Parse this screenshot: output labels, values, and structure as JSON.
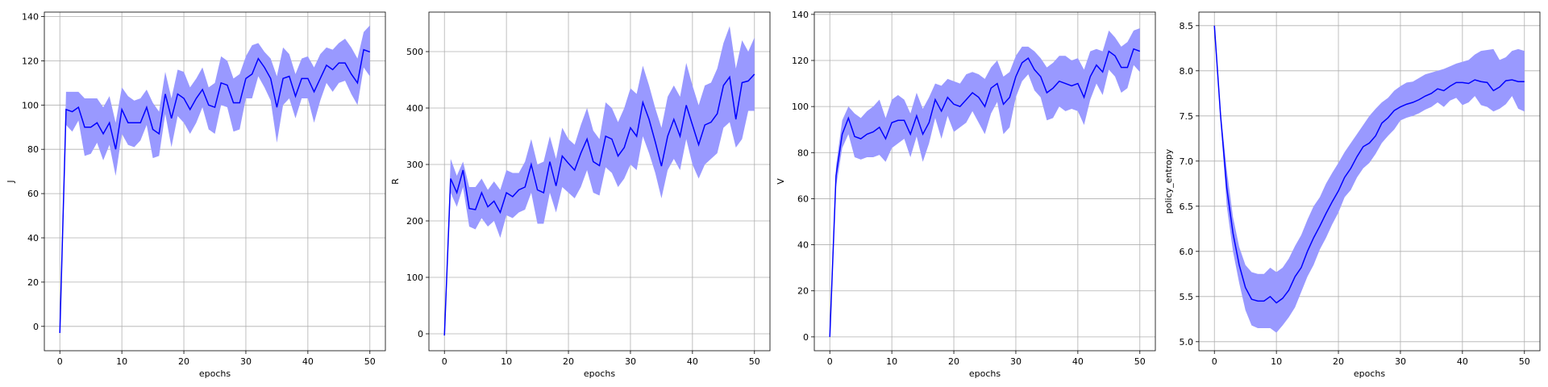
{
  "chart_data": [
    {
      "type": "line",
      "xlabel": "epochs",
      "ylabel": "J",
      "xlim": [
        -2.5,
        52.5
      ],
      "ylim": [
        -11,
        142
      ],
      "xticks": [
        0,
        10,
        20,
        30,
        40,
        50
      ],
      "yticks": [
        0,
        20,
        40,
        60,
        80,
        100,
        120,
        140
      ],
      "grid": true,
      "series": [
        {
          "x": [
            0,
            1,
            2,
            3,
            4,
            5,
            6,
            7,
            8,
            9,
            10,
            11,
            12,
            13,
            14,
            15,
            16,
            17,
            18,
            19,
            20,
            21,
            22,
            23,
            24,
            25,
            26,
            27,
            28,
            29,
            30,
            31,
            32,
            33,
            34,
            35,
            36,
            37,
            38,
            39,
            40,
            41,
            42,
            43,
            44,
            45,
            46,
            47,
            48,
            49,
            50
          ],
          "values": [
            -3,
            98,
            97,
            99,
            90,
            90,
            92,
            87,
            92,
            80,
            98,
            92,
            92,
            92,
            99,
            89,
            87,
            105,
            94,
            105,
            103,
            98,
            103,
            107,
            100,
            99,
            110,
            109,
            101,
            101,
            112,
            114,
            121,
            117,
            112,
            99,
            112,
            113,
            104,
            112,
            112,
            106,
            112,
            118,
            116,
            119,
            119,
            114,
            110,
            125,
            124
          ],
          "lower": [
            -3,
            91,
            88,
            93,
            77,
            78,
            83,
            75,
            82,
            68,
            87,
            82,
            81,
            84,
            91,
            76,
            77,
            96,
            81,
            95,
            92,
            87,
            92,
            99,
            89,
            87,
            100,
            99,
            88,
            89,
            103,
            103,
            113,
            108,
            102,
            83,
            100,
            103,
            94,
            103,
            103,
            92,
            102,
            110,
            106,
            110,
            111,
            105,
            100,
            117,
            113
          ],
          "upper": [
            -3,
            106,
            106,
            106,
            103,
            103,
            103,
            99,
            104,
            92,
            108,
            104,
            102,
            103,
            107,
            101,
            97,
            115,
            103,
            116,
            115,
            108,
            112,
            117,
            108,
            110,
            122,
            120,
            112,
            114,
            122,
            127,
            128,
            124,
            121,
            113,
            126,
            123,
            114,
            121,
            122,
            117,
            123,
            126,
            125,
            128,
            130,
            126,
            121,
            133,
            136
          ]
        }
      ]
    },
    {
      "type": "line",
      "xlabel": "epochs",
      "ylabel": "R",
      "xlim": [
        -2.5,
        52.5
      ],
      "ylim": [
        -30,
        570
      ],
      "xticks": [
        0,
        10,
        20,
        30,
        40,
        50
      ],
      "yticks": [
        0,
        100,
        200,
        300,
        400,
        500
      ],
      "grid": true,
      "series": [
        {
          "x": [
            0,
            1,
            2,
            3,
            4,
            5,
            6,
            7,
            8,
            9,
            10,
            11,
            12,
            13,
            14,
            15,
            16,
            17,
            18,
            19,
            20,
            21,
            22,
            23,
            24,
            25,
            26,
            27,
            28,
            29,
            30,
            31,
            32,
            33,
            34,
            35,
            36,
            37,
            38,
            39,
            40,
            41,
            42,
            43,
            44,
            45,
            46,
            47,
            48,
            49,
            50
          ],
          "values": [
            -3,
            275,
            250,
            290,
            222,
            220,
            250,
            225,
            235,
            215,
            250,
            243,
            255,
            260,
            300,
            255,
            250,
            305,
            262,
            315,
            302,
            290,
            320,
            345,
            305,
            298,
            350,
            345,
            315,
            330,
            365,
            350,
            410,
            380,
            340,
            297,
            350,
            380,
            350,
            405,
            370,
            335,
            370,
            375,
            390,
            440,
            455,
            380,
            445,
            448,
            460
          ],
          "lower": [
            -3,
            250,
            225,
            260,
            190,
            185,
            205,
            190,
            200,
            170,
            210,
            205,
            215,
            220,
            250,
            195,
            195,
            250,
            215,
            260,
            250,
            240,
            260,
            290,
            250,
            245,
            295,
            285,
            260,
            275,
            300,
            290,
            350,
            320,
            285,
            240,
            290,
            310,
            290,
            345,
            300,
            275,
            300,
            310,
            320,
            365,
            375,
            330,
            345,
            395,
            395
          ],
          "upper": [
            -3,
            310,
            280,
            305,
            260,
            260,
            275,
            255,
            270,
            255,
            290,
            285,
            285,
            305,
            345,
            300,
            305,
            350,
            310,
            365,
            345,
            335,
            370,
            400,
            360,
            345,
            410,
            400,
            375,
            400,
            435,
            425,
            475,
            440,
            400,
            365,
            420,
            440,
            420,
            480,
            440,
            405,
            440,
            445,
            470,
            515,
            545,
            470,
            520,
            500,
            525
          ]
        }
      ]
    },
    {
      "type": "line",
      "xlabel": "epochs",
      "ylabel": "V",
      "xlim": [
        -2.5,
        52.5
      ],
      "ylim": [
        -6,
        141
      ],
      "xticks": [
        0,
        10,
        20,
        30,
        40,
        50
      ],
      "yticks": [
        0,
        20,
        40,
        60,
        80,
        100,
        120,
        140
      ],
      "grid": true,
      "series": [
        {
          "x": [
            0,
            1,
            2,
            3,
            4,
            5,
            6,
            7,
            8,
            9,
            10,
            11,
            12,
            13,
            14,
            15,
            16,
            17,
            18,
            19,
            20,
            21,
            22,
            23,
            24,
            25,
            26,
            27,
            28,
            29,
            30,
            31,
            32,
            33,
            34,
            35,
            36,
            37,
            38,
            39,
            40,
            41,
            42,
            43,
            44,
            45,
            46,
            47,
            48,
            49,
            50
          ],
          "values": [
            0,
            70,
            88,
            95,
            87,
            86,
            88,
            89,
            91,
            86,
            93,
            94,
            94,
            88,
            96,
            88,
            93,
            103,
            98,
            104,
            101,
            100,
            103,
            106,
            104,
            100,
            108,
            110,
            101,
            104,
            113,
            119,
            121,
            116,
            113,
            106,
            108,
            111,
            110,
            109,
            110,
            104,
            113,
            118,
            115,
            124,
            122,
            117,
            117,
            125,
            124
          ],
          "lower": [
            0,
            65,
            82,
            88,
            78,
            77,
            78,
            78,
            79,
            76,
            82,
            84,
            86,
            78,
            87,
            76,
            84,
            95,
            86,
            96,
            89,
            91,
            93,
            98,
            93,
            88,
            97,
            102,
            88,
            91,
            104,
            111,
            114,
            107,
            104,
            94,
            95,
            100,
            98,
            99,
            98,
            92,
            103,
            110,
            105,
            116,
            113,
            106,
            108,
            118,
            115
          ],
          "upper": [
            0,
            74,
            94,
            100,
            97,
            95,
            98,
            100,
            103,
            95,
            103,
            105,
            103,
            97,
            106,
            99,
            104,
            110,
            109,
            112,
            111,
            110,
            114,
            115,
            114,
            112,
            117,
            120,
            113,
            115,
            122,
            126,
            126,
            124,
            121,
            117,
            119,
            122,
            122,
            120,
            121,
            116,
            124,
            125,
            124,
            133,
            130,
            126,
            128,
            133,
            134
          ]
        }
      ]
    },
    {
      "type": "line",
      "xlabel": "epochs",
      "ylabel": "policy_entropy",
      "xlim": [
        -2.5,
        52.5
      ],
      "ylim": [
        4.9,
        8.65
      ],
      "xticks": [
        0,
        10,
        20,
        30,
        40,
        50
      ],
      "yticks": [
        5.0,
        5.5,
        6.0,
        6.5,
        7.0,
        7.5,
        8.0,
        8.5
      ],
      "grid": true,
      "series": [
        {
          "x": [
            0,
            1,
            2,
            3,
            4,
            5,
            6,
            7,
            8,
            9,
            10,
            11,
            12,
            13,
            14,
            15,
            16,
            17,
            18,
            19,
            20,
            21,
            22,
            23,
            24,
            25,
            26,
            27,
            28,
            29,
            30,
            31,
            32,
            33,
            34,
            35,
            36,
            37,
            38,
            39,
            40,
            41,
            42,
            43,
            44,
            45,
            46,
            47,
            48,
            49,
            50
          ],
          "values": [
            8.5,
            7.5,
            6.7,
            6.2,
            5.85,
            5.6,
            5.47,
            5.45,
            5.45,
            5.5,
            5.43,
            5.48,
            5.57,
            5.72,
            5.82,
            6.0,
            6.15,
            6.28,
            6.42,
            6.55,
            6.67,
            6.82,
            6.92,
            7.05,
            7.16,
            7.2,
            7.28,
            7.42,
            7.48,
            7.56,
            7.6,
            7.63,
            7.65,
            7.68,
            7.72,
            7.75,
            7.8,
            7.78,
            7.83,
            7.87,
            7.87,
            7.86,
            7.9,
            7.88,
            7.87,
            7.78,
            7.82,
            7.89,
            7.9,
            7.88,
            7.88
          ],
          "lower": [
            8.5,
            7.45,
            6.5,
            6.0,
            5.65,
            5.35,
            5.18,
            5.15,
            5.15,
            5.15,
            5.1,
            5.18,
            5.27,
            5.38,
            5.55,
            5.72,
            5.85,
            6.02,
            6.15,
            6.3,
            6.43,
            6.6,
            6.68,
            6.82,
            6.92,
            6.98,
            7.08,
            7.2,
            7.28,
            7.35,
            7.45,
            7.48,
            7.5,
            7.53,
            7.57,
            7.6,
            7.65,
            7.6,
            7.67,
            7.7,
            7.62,
            7.65,
            7.72,
            7.62,
            7.6,
            7.55,
            7.58,
            7.63,
            7.72,
            7.58,
            7.55
          ],
          "upper": [
            8.5,
            7.55,
            6.9,
            6.38,
            6.05,
            5.85,
            5.77,
            5.75,
            5.75,
            5.82,
            5.77,
            5.82,
            5.92,
            6.06,
            6.18,
            6.35,
            6.5,
            6.6,
            6.75,
            6.87,
            6.98,
            7.1,
            7.2,
            7.3,
            7.4,
            7.5,
            7.58,
            7.65,
            7.7,
            7.78,
            7.83,
            7.87,
            7.88,
            7.92,
            7.96,
            7.98,
            8.0,
            8.02,
            8.05,
            8.08,
            8.1,
            8.12,
            8.18,
            8.22,
            8.23,
            8.24,
            8.12,
            8.15,
            8.22,
            8.24,
            8.22
          ]
        }
      ]
    }
  ],
  "colors": {
    "line": "#0000ff",
    "band": "#9999ff",
    "grid": "#b0b0b0",
    "axis": "#000000"
  }
}
